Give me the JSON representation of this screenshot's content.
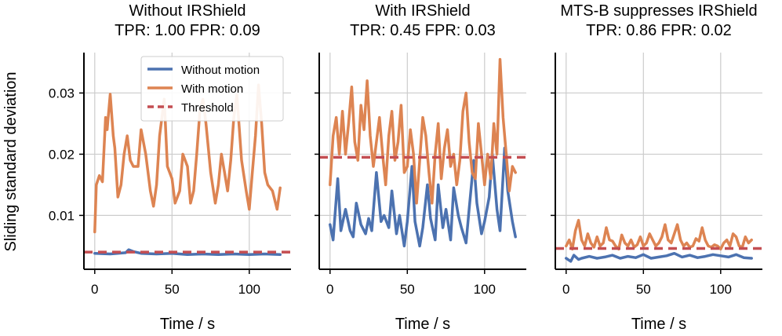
{
  "figure": {
    "ylabel": "Sliding standard deviation",
    "yticks": [
      "0.01",
      "0.02",
      "0.03"
    ],
    "xticks": [
      "0",
      "50",
      "100"
    ]
  },
  "legend": {
    "items": [
      {
        "label": "Without motion",
        "color": "#4c72b0",
        "style": "solid"
      },
      {
        "label": "With motion",
        "color": "#dd8452",
        "style": "solid"
      },
      {
        "label": "Threshold",
        "color": "#c44e52",
        "style": "dashed"
      }
    ]
  },
  "colors": {
    "without": "#4c72b0",
    "with": "#dd8452",
    "threshold": "#c44e52",
    "grid": "#cccccc"
  },
  "chart_data": [
    {
      "type": "line",
      "title": "Without IRShield",
      "subtitle": "TPR: 1.00 FPR: 0.09",
      "xlabel": "Time / s",
      "ylabel": "Sliding standard deviation",
      "xlim": [
        -7,
        127
      ],
      "ylim": [
        0.0012,
        0.0366
      ],
      "threshold": 0.004,
      "series": [
        {
          "name": "Without motion",
          "x": [
            0,
            10,
            20,
            22,
            25,
            30,
            40,
            50,
            60,
            70,
            80,
            90,
            100,
            110,
            120
          ],
          "y": [
            0.0038,
            0.0037,
            0.0039,
            0.0044,
            0.0041,
            0.0038,
            0.0037,
            0.0038,
            0.0036,
            0.0037,
            0.0036,
            0.0037,
            0.0036,
            0.0037,
            0.0036
          ]
        },
        {
          "name": "With motion",
          "x": [
            0,
            1,
            3,
            5,
            7,
            8,
            10,
            12,
            13,
            15,
            17,
            19,
            21,
            23,
            25,
            28,
            30,
            33,
            36,
            38,
            40,
            42,
            45,
            47,
            50,
            52,
            55,
            57,
            60,
            62,
            64,
            66,
            68,
            70,
            72,
            75,
            78,
            80,
            82,
            84,
            86,
            88,
            90,
            92,
            95,
            98,
            100,
            102,
            104,
            106,
            108,
            110,
            112,
            115,
            118,
            120
          ],
          "y": [
            0.0073,
            0.015,
            0.0165,
            0.0155,
            0.026,
            0.024,
            0.0298,
            0.023,
            0.021,
            0.013,
            0.015,
            0.02,
            0.023,
            0.019,
            0.018,
            0.018,
            0.024,
            0.02,
            0.014,
            0.0115,
            0.015,
            0.023,
            0.029,
            0.018,
            0.016,
            0.012,
            0.014,
            0.02,
            0.018,
            0.012,
            0.014,
            0.02,
            0.027,
            0.029,
            0.025,
            0.017,
            0.012,
            0.015,
            0.02,
            0.017,
            0.014,
            0.019,
            0.026,
            0.0297,
            0.019,
            0.014,
            0.011,
            0.017,
            0.023,
            0.0313,
            0.025,
            0.017,
            0.015,
            0.014,
            0.011,
            0.0145
          ]
        }
      ]
    },
    {
      "type": "line",
      "title": "With IRShield",
      "subtitle": "TPR: 0.45 FPR: 0.03",
      "xlabel": "Time / s",
      "xlim": [
        -7,
        127
      ],
      "ylim": [
        0.0012,
        0.0366
      ],
      "threshold": 0.0195,
      "series": [
        {
          "name": "Without motion",
          "x": [
            0,
            2,
            5,
            7,
            10,
            13,
            15,
            17,
            20,
            23,
            25,
            27,
            30,
            33,
            35,
            38,
            40,
            43,
            45,
            48,
            50,
            53,
            55,
            58,
            60,
            63,
            65,
            68,
            70,
            73,
            75,
            78,
            80,
            83,
            85,
            88,
            90,
            93,
            95,
            98,
            100,
            103,
            105,
            108,
            110,
            113,
            115,
            118,
            120
          ],
          "y": [
            0.0085,
            0.006,
            0.016,
            0.0075,
            0.011,
            0.0075,
            0.0065,
            0.012,
            0.0085,
            0.007,
            0.0095,
            0.0075,
            0.017,
            0.009,
            0.01,
            0.008,
            0.014,
            0.007,
            0.01,
            0.005,
            0.009,
            0.018,
            0.009,
            0.005,
            0.008,
            0.015,
            0.0095,
            0.006,
            0.015,
            0.008,
            0.011,
            0.006,
            0.0145,
            0.01,
            0.008,
            0.0055,
            0.011,
            0.019,
            0.012,
            0.007,
            0.009,
            0.013,
            0.02,
            0.011,
            0.0075,
            0.021,
            0.014,
            0.009,
            0.0065
          ]
        },
        {
          "name": "With motion",
          "x": [
            0,
            2,
            4,
            6,
            8,
            10,
            12,
            14,
            16,
            18,
            20,
            22,
            24,
            26,
            28,
            30,
            32,
            34,
            36,
            38,
            40,
            42,
            44,
            46,
            48,
            50,
            52,
            54,
            56,
            58,
            60,
            62,
            64,
            66,
            68,
            70,
            72,
            74,
            76,
            78,
            80,
            82,
            84,
            86,
            88,
            90,
            92,
            94,
            96,
            98,
            100,
            102,
            104,
            106,
            108,
            110,
            112,
            114,
            116,
            118,
            120
          ],
          "y": [
            0.015,
            0.023,
            0.026,
            0.02,
            0.027,
            0.02,
            0.025,
            0.031,
            0.022,
            0.019,
            0.028,
            0.024,
            0.032,
            0.023,
            0.018,
            0.022,
            0.026,
            0.02,
            0.015,
            0.023,
            0.027,
            0.019,
            0.022,
            0.028,
            0.017,
            0.018,
            0.024,
            0.02,
            0.012,
            0.019,
            0.026,
            0.023,
            0.017,
            0.012,
            0.02,
            0.025,
            0.016,
            0.021,
            0.024,
            0.018,
            0.02,
            0.015,
            0.019,
            0.027,
            0.03,
            0.022,
            0.017,
            0.016,
            0.025,
            0.02,
            0.015,
            0.02,
            0.016,
            0.025,
            0.02,
            0.0355,
            0.026,
            0.02,
            0.014,
            0.018,
            0.017
          ]
        }
      ]
    },
    {
      "type": "line",
      "title": "MTS-B suppresses IRShield",
      "subtitle": "TPR: 0.86 FPR: 0.02",
      "xlabel": "Time / s",
      "xlim": [
        -7,
        127
      ],
      "ylim": [
        0.0012,
        0.0366
      ],
      "threshold": 0.0046,
      "series": [
        {
          "name": "Without motion",
          "x": [
            0,
            3,
            5,
            8,
            10,
            15,
            20,
            25,
            30,
            35,
            40,
            45,
            50,
            55,
            60,
            65,
            70,
            75,
            80,
            85,
            90,
            95,
            100,
            105,
            110,
            115,
            120
          ],
          "y": [
            0.003,
            0.0025,
            0.0035,
            0.0028,
            0.003,
            0.0033,
            0.003,
            0.0032,
            0.0035,
            0.003,
            0.0033,
            0.0031,
            0.0036,
            0.003,
            0.0032,
            0.0034,
            0.0038,
            0.0032,
            0.0035,
            0.0031,
            0.0033,
            0.0036,
            0.0034,
            0.0032,
            0.0036,
            0.0031,
            0.003
          ]
        },
        {
          "name": "With motion",
          "x": [
            0,
            2,
            4,
            6,
            8,
            10,
            12,
            14,
            16,
            18,
            20,
            22,
            24,
            26,
            28,
            30,
            32,
            34,
            36,
            38,
            40,
            42,
            44,
            46,
            48,
            50,
            52,
            54,
            56,
            58,
            60,
            62,
            64,
            66,
            68,
            70,
            72,
            74,
            76,
            78,
            80,
            82,
            84,
            86,
            88,
            90,
            92,
            94,
            96,
            98,
            100,
            102,
            104,
            106,
            108,
            110,
            112,
            114,
            116,
            118,
            120
          ],
          "y": [
            0.005,
            0.006,
            0.0045,
            0.0075,
            0.0092,
            0.006,
            0.005,
            0.007,
            0.0055,
            0.0048,
            0.0065,
            0.005,
            0.0055,
            0.008,
            0.006,
            0.0058,
            0.005,
            0.0045,
            0.0068,
            0.0055,
            0.005,
            0.006,
            0.0048,
            0.0052,
            0.0065,
            0.005,
            0.0055,
            0.007,
            0.006,
            0.005,
            0.0055,
            0.0065,
            0.0085,
            0.006,
            0.0055,
            0.007,
            0.0085,
            0.006,
            0.005,
            0.0055,
            0.0048,
            0.005,
            0.0062,
            0.0058,
            0.008,
            0.006,
            0.005,
            0.0048,
            0.0052,
            0.005,
            0.0045,
            0.0055,
            0.006,
            0.005,
            0.007,
            0.0065,
            0.005,
            0.0048,
            0.0065,
            0.0055,
            0.006
          ]
        }
      ]
    }
  ]
}
